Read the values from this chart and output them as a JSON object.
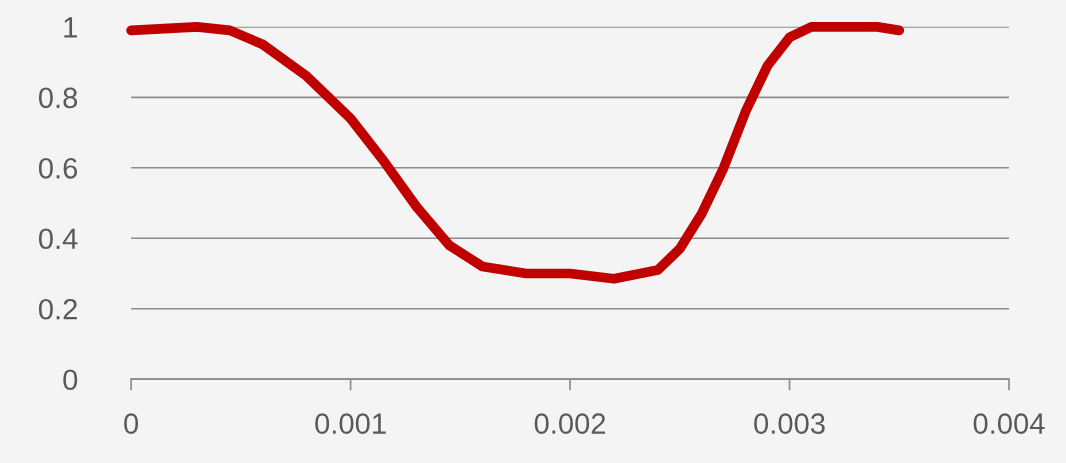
{
  "chart_data": {
    "type": "line",
    "x": [
      0,
      0.00015,
      0.0003,
      0.00045,
      0.0006,
      0.0008,
      0.001,
      0.00115,
      0.0013,
      0.00145,
      0.0016,
      0.0018,
      0.002,
      0.0022,
      0.0024,
      0.0025,
      0.0026,
      0.0027,
      0.0028,
      0.0029,
      0.003,
      0.0031,
      0.0032,
      0.0033,
      0.0034,
      0.0035
    ],
    "series": [
      {
        "color": "#c00000",
        "values": [
          0.99,
          0.995,
          1.0,
          0.99,
          0.95,
          0.86,
          0.74,
          0.62,
          0.49,
          0.38,
          0.32,
          0.3,
          0.3,
          0.285,
          0.31,
          0.37,
          0.47,
          0.6,
          0.76,
          0.89,
          0.97,
          1.0,
          1.0,
          1.0,
          1.0,
          0.99
        ]
      }
    ],
    "xlim": [
      0,
      0.004
    ],
    "xticks": [
      0,
      0.001,
      0.002,
      0.003,
      0.004
    ],
    "ylim": [
      0,
      1
    ],
    "yticks": [
      0,
      0.2,
      0.4,
      0.6,
      0.8,
      1
    ],
    "grid": "y",
    "marker": "none",
    "line_style": "solid",
    "legend": false
  }
}
